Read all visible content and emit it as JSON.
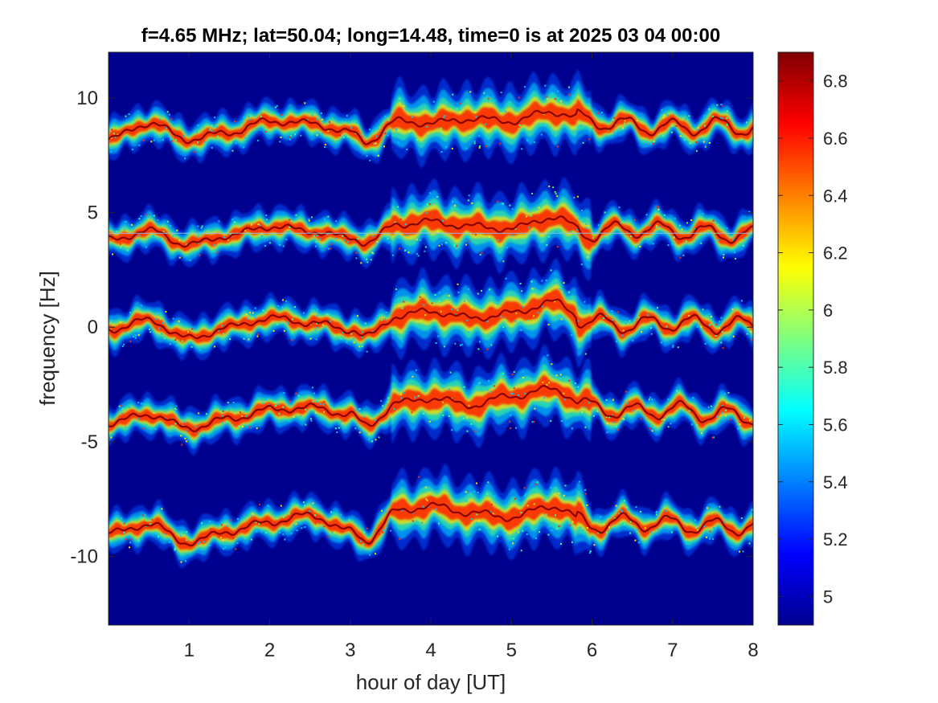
{
  "chart_data": {
    "type": "heatmap",
    "title": "f=4.65 MHz;  lat=50.04; long=14.48, time=0 is at 2025 03 04 00:00",
    "xlabel": "hour of day [UT]",
    "ylabel": "frequency [Hz]",
    "xlim": [
      0,
      8
    ],
    "ylim": [
      -13,
      12
    ],
    "xticks": [
      1,
      2,
      3,
      4,
      5,
      6,
      7,
      8
    ],
    "xtick_labels": [
      "1",
      "2",
      "3",
      "4",
      "5",
      "6",
      "7",
      "8"
    ],
    "yticks": [
      10,
      5,
      0,
      -5,
      -10
    ],
    "ytick_labels": [
      "10",
      "5",
      "0",
      "-5",
      "-10"
    ],
    "grid": false,
    "colormap": "jet",
    "background_color": "#00008f",
    "colorbar": {
      "range": [
        4.9,
        6.9
      ],
      "ticks": [
        6.8,
        6.6,
        6.4,
        6.2,
        6,
        5.8,
        5.6,
        5.4,
        5.2,
        5
      ],
      "tick_labels": [
        "6.8",
        "6.6",
        "6.4",
        "6.2",
        "6",
        "5.8",
        "5.6",
        "5.4",
        "5.2",
        "5"
      ]
    },
    "series": [
      {
        "center": 8.7,
        "x": [
          0,
          0.5,
          1,
          1.5,
          2,
          2.5,
          3,
          3.2,
          3.6,
          4,
          4.5,
          5,
          5.5,
          6,
          6.5,
          7,
          7.5,
          8
        ],
        "y": [
          8.2,
          8.9,
          8.2,
          8.5,
          9.0,
          8.9,
          8.5,
          8.1,
          9.0,
          8.9,
          9.1,
          9.0,
          9.4,
          9.0,
          8.8,
          8.7,
          8.8,
          8.7
        ]
      },
      {
        "center": 4.0,
        "x": [
          0,
          0.5,
          1,
          1.5,
          2,
          2.5,
          3,
          3.2,
          3.6,
          4,
          4.5,
          5,
          5.5,
          6,
          6.5,
          7,
          7.5,
          8
        ],
        "y": [
          3.8,
          4.2,
          3.6,
          4.0,
          4.4,
          4.2,
          3.9,
          3.7,
          4.5,
          4.6,
          4.4,
          4.3,
          4.8,
          4.1,
          4.3,
          4.2,
          4.1,
          4.0
        ]
      },
      {
        "center": 0.0,
        "x": [
          0,
          0.5,
          1,
          1.5,
          2,
          2.5,
          3,
          3.2,
          3.6,
          4,
          4.5,
          5,
          5.5,
          6,
          6.5,
          7,
          7.5,
          8
        ],
        "y": [
          -0.1,
          0.3,
          -0.5,
          0.0,
          0.4,
          0.2,
          -0.1,
          -0.4,
          0.5,
          0.7,
          0.4,
          0.6,
          1.1,
          0.2,
          0.1,
          0.2,
          0.1,
          0.1
        ]
      },
      {
        "center": -4.0,
        "x": [
          0,
          0.5,
          1,
          1.5,
          2,
          2.5,
          3,
          3.2,
          3.6,
          4,
          4.5,
          5,
          5.5,
          6,
          6.5,
          7,
          7.5,
          8
        ],
        "y": [
          -4.2,
          -3.8,
          -4.4,
          -4.0,
          -3.6,
          -3.5,
          -3.8,
          -4.3,
          -3.3,
          -3.1,
          -3.4,
          -3.0,
          -2.7,
          -3.5,
          -3.7,
          -3.6,
          -3.8,
          -3.9
        ]
      },
      {
        "center": -8.7,
        "x": [
          0,
          0.5,
          1,
          1.5,
          2,
          2.5,
          3,
          3.2,
          3.6,
          4,
          4.5,
          5,
          5.5,
          6,
          6.5,
          7,
          7.5,
          8
        ],
        "y": [
          -9.0,
          -8.6,
          -9.4,
          -8.9,
          -8.5,
          -8.2,
          -8.9,
          -9.3,
          -8.0,
          -7.8,
          -8.1,
          -8.3,
          -7.8,
          -8.6,
          -8.5,
          -8.6,
          -8.7,
          -8.7
        ]
      }
    ],
    "horizontal_line": {
      "y": 4.1,
      "x_range": [
        0,
        8
      ],
      "color": "#8fc7e8"
    }
  }
}
